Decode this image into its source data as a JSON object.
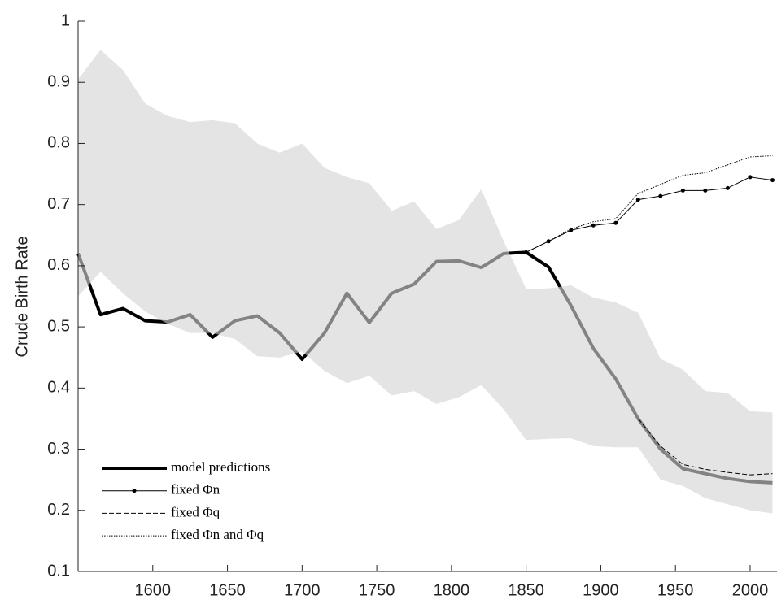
{
  "chart_data": {
    "type": "line",
    "ylabel": "Crude Birth Rate",
    "x": [
      1550,
      1565,
      1580,
      1595,
      1610,
      1625,
      1640,
      1655,
      1670,
      1685,
      1700,
      1715,
      1730,
      1745,
      1760,
      1775,
      1790,
      1805,
      1820,
      1835,
      1850,
      1865,
      1880,
      1895,
      1910,
      1925,
      1940,
      1955,
      1970,
      1985,
      2000,
      2015
    ],
    "band": {
      "color": "#d4d4d4",
      "upper": [
        0.905,
        0.953,
        0.92,
        0.865,
        0.845,
        0.835,
        0.838,
        0.833,
        0.8,
        0.785,
        0.8,
        0.76,
        0.745,
        0.735,
        0.69,
        0.705,
        0.66,
        0.675,
        0.725,
        0.64,
        0.562,
        0.563,
        0.568,
        0.548,
        0.54,
        0.523,
        0.448,
        0.43,
        0.395,
        0.392,
        0.362,
        0.36
      ],
      "lower": [
        0.55,
        0.59,
        0.555,
        0.525,
        0.505,
        0.49,
        0.49,
        0.48,
        0.452,
        0.45,
        0.46,
        0.428,
        0.408,
        0.42,
        0.388,
        0.395,
        0.374,
        0.385,
        0.405,
        0.365,
        0.315,
        0.317,
        0.318,
        0.305,
        0.303,
        0.303,
        0.25,
        0.24,
        0.22,
        0.21,
        0.2,
        0.195
      ]
    },
    "series": [
      {
        "name": "model predictions",
        "color": "#000000",
        "style": "solid",
        "width": 4,
        "values": [
          0.62,
          0.52,
          0.53,
          0.51,
          0.508,
          0.52,
          0.483,
          0.51,
          0.518,
          0.49,
          0.447,
          0.49,
          0.555,
          0.507,
          0.555,
          0.57,
          0.607,
          0.608,
          0.597,
          0.62,
          0.622,
          0.598,
          0.535,
          0.465,
          0.415,
          0.35,
          0.3,
          0.268,
          0.26,
          0.252,
          0.247,
          0.245
        ]
      },
      {
        "name": "fixed Φn",
        "color": "#000000",
        "style": "solid",
        "width": 1,
        "marker": true,
        "values": [
          null,
          null,
          null,
          null,
          null,
          null,
          null,
          null,
          null,
          null,
          null,
          null,
          null,
          null,
          null,
          null,
          null,
          null,
          null,
          null,
          0.622,
          0.64,
          0.658,
          0.666,
          0.67,
          0.708,
          0.714,
          0.723,
          0.723,
          0.727,
          0.745,
          0.74
        ]
      },
      {
        "name": "fixed Φq",
        "color": "#000000",
        "style": "dashed",
        "width": 1,
        "values": [
          null,
          null,
          null,
          null,
          null,
          null,
          null,
          null,
          null,
          null,
          null,
          null,
          null,
          null,
          null,
          null,
          null,
          null,
          null,
          null,
          null,
          null,
          null,
          null,
          null,
          0.35,
          0.305,
          0.275,
          0.267,
          0.262,
          0.258,
          0.26
        ]
      },
      {
        "name": "fixed Φn and Φq",
        "color": "#000000",
        "style": "dotted",
        "width": 1,
        "values": [
          null,
          null,
          null,
          null,
          null,
          null,
          null,
          null,
          null,
          null,
          null,
          null,
          null,
          null,
          null,
          null,
          null,
          null,
          null,
          null,
          0.622,
          0.64,
          0.66,
          0.672,
          0.677,
          0.718,
          0.733,
          0.748,
          0.752,
          0.765,
          0.778,
          0.78
        ]
      }
    ],
    "xlim": [
      1550,
      2018
    ],
    "ylim": [
      0.1,
      1
    ],
    "xticks": [
      1600,
      1650,
      1700,
      1750,
      1800,
      1850,
      1900,
      1950,
      2000
    ],
    "yticks": [
      0.1,
      0.2,
      0.3,
      0.4,
      0.5,
      0.6,
      0.7,
      0.8,
      0.9,
      1
    ],
    "legend": "lower left"
  }
}
